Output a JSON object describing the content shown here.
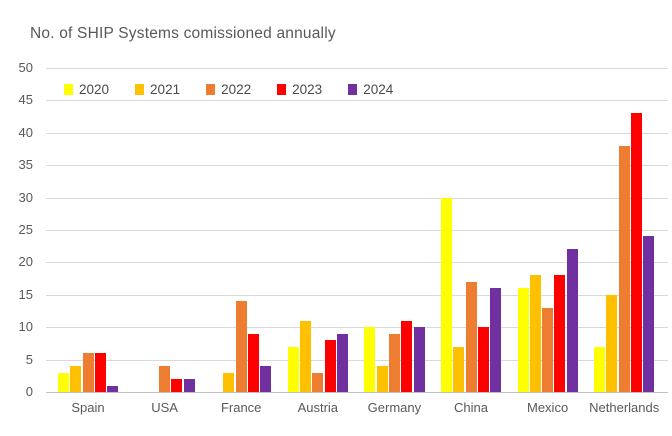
{
  "chart_data": {
    "type": "bar",
    "title": "No. of SHIP Systems comissioned annually",
    "categories": [
      "Spain",
      "USA",
      "France",
      "Austria",
      "Germany",
      "China",
      "Mexico",
      "Netherlands"
    ],
    "series": [
      {
        "name": "2020",
        "color": "#FFFF00",
        "values": [
          3,
          0,
          0,
          7,
          10,
          30,
          16,
          7
        ]
      },
      {
        "name": "2021",
        "color": "#FFC000",
        "values": [
          4,
          0,
          3,
          11,
          4,
          7,
          18,
          15
        ]
      },
      {
        "name": "2022",
        "color": "#ED7D31",
        "values": [
          6,
          4,
          14,
          3,
          9,
          17,
          13,
          38
        ]
      },
      {
        "name": "2023",
        "color": "#FF0000",
        "values": [
          6,
          2,
          9,
          8,
          11,
          10,
          18,
          43
        ]
      },
      {
        "name": "2024",
        "color": "#7030A0",
        "values": [
          1,
          2,
          4,
          9,
          10,
          16,
          22,
          24
        ]
      }
    ],
    "ylim": [
      0,
      50
    ],
    "ytick_step": 5,
    "grid": true,
    "legend_position": "top-inside",
    "xlabel": "",
    "ylabel": ""
  },
  "colors": {
    "background": "#FFFFFF",
    "gridline": "#D9D9D9",
    "axis_line": "#C0C0C0",
    "tick_text": "#595959",
    "title_text": "#595959"
  }
}
